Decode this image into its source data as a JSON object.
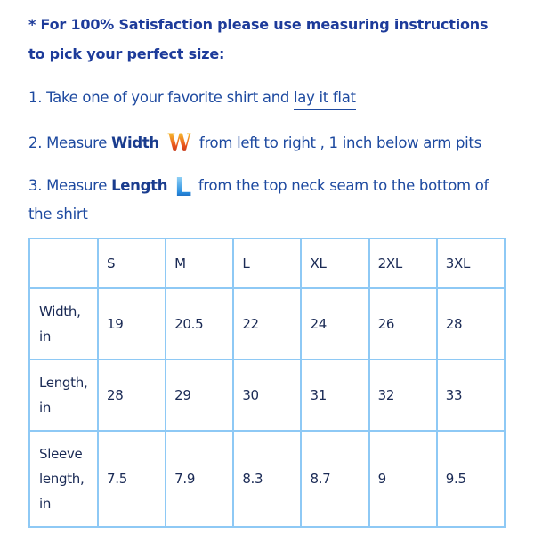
{
  "heading": {
    "line1": "* For 100% Satisfaction please use measuring instructions",
    "line2": "to pick your perfect size:"
  },
  "steps": {
    "step1_prefix": "1. Take one of your favorite shirt and ",
    "step1_link": "lay it flat",
    "step2_prefix": "2. Measure ",
    "step2_bold": "Width",
    "step2_icon": "W",
    "step2_suffix": " from left to right , 1 inch below arm pits",
    "step3_prefix": "3. Measure ",
    "step3_bold": "Length",
    "step3_icon": "L",
    "step3_suffix": " from the top neck seam to the bottom of",
    "step3_line2": "the shirt"
  },
  "table": {
    "headers": [
      "",
      "S",
      "M",
      "L",
      "XL",
      "2XL",
      "3XL"
    ],
    "rows": [
      {
        "label": [
          "Width,",
          "in"
        ],
        "values": [
          "19",
          "20.5",
          "22",
          "24",
          "26",
          "28"
        ]
      },
      {
        "label": [
          "Length,",
          "in"
        ],
        "values": [
          "28",
          "29",
          "30",
          "31",
          "32",
          "33"
        ]
      },
      {
        "label": [
          "Sleeve",
          "length,",
          "in"
        ],
        "values": [
          "7.5",
          "7.9",
          "8.3",
          "8.7",
          "9",
          "9.5"
        ]
      }
    ]
  },
  "colors": {
    "text": "#1e3e96",
    "table_border": "#8ec9f5",
    "w_icon": "#e9521b",
    "l_icon": "#2a8fe0"
  }
}
